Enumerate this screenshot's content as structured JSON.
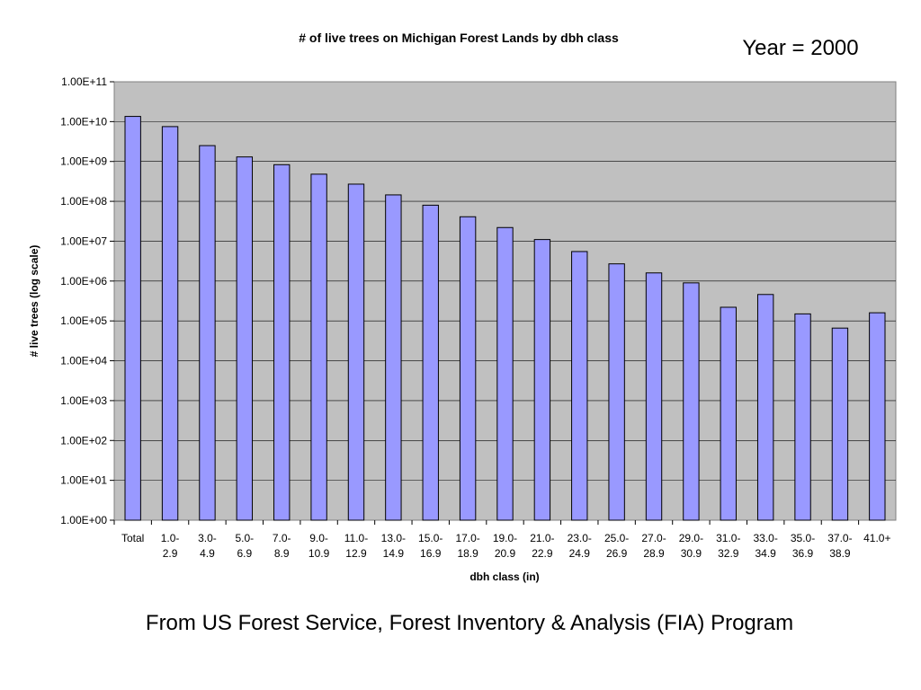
{
  "slide": {
    "year_label": "Year = 2000",
    "source_note": "From US Forest Service, Forest Inventory & Analysis (FIA) Program"
  },
  "chart_data": {
    "type": "bar",
    "title": "# of live trees on Michigan Forest Lands by dbh class",
    "xlabel": "dbh class (in)",
    "ylabel": "# live trees (log scale)",
    "y_scale": "log",
    "ylim": [
      1,
      100000000000
    ],
    "y_ticks": [
      "1.00E+00",
      "1.00E+01",
      "1.00E+02",
      "1.00E+03",
      "1.00E+04",
      "1.00E+05",
      "1.00E+06",
      "1.00E+07",
      "1.00E+08",
      "1.00E+09",
      "1.00E+10",
      "1.00E+11"
    ],
    "grid": true,
    "legend": "none",
    "categories": [
      [
        "Total"
      ],
      [
        "1.0-",
        "2.9"
      ],
      [
        "3.0-",
        "4.9"
      ],
      [
        "5.0-",
        "6.9"
      ],
      [
        "7.0-",
        "8.9"
      ],
      [
        "9.0-",
        "10.9"
      ],
      [
        "11.0-",
        "12.9"
      ],
      [
        "13.0-",
        "14.9"
      ],
      [
        "15.0-",
        "16.9"
      ],
      [
        "17.0-",
        "18.9"
      ],
      [
        "19.0-",
        "20.9"
      ],
      [
        "21.0-",
        "22.9"
      ],
      [
        "23.0-",
        "24.9"
      ],
      [
        "25.0-",
        "26.9"
      ],
      [
        "27.0-",
        "28.9"
      ],
      [
        "29.0-",
        "30.9"
      ],
      [
        "31.0-",
        "32.9"
      ],
      [
        "33.0-",
        "34.9"
      ],
      [
        "35.0-",
        "36.9"
      ],
      [
        "37.0-",
        "38.9"
      ],
      [
        "41.0+"
      ]
    ],
    "values": [
      13500000000,
      7500000000,
      2500000000,
      1300000000,
      830000000,
      480000000,
      270000000,
      145000000,
      80000000,
      41000000,
      22000000,
      11000000,
      5500000,
      2700000,
      1600000,
      900000,
      220000,
      460000,
      150000,
      66000,
      160000
    ],
    "colors": {
      "bar_fill": "#9999ff",
      "bar_stroke": "#000000",
      "plot_background": "#c0c0c0",
      "gridline": "#000000"
    }
  }
}
